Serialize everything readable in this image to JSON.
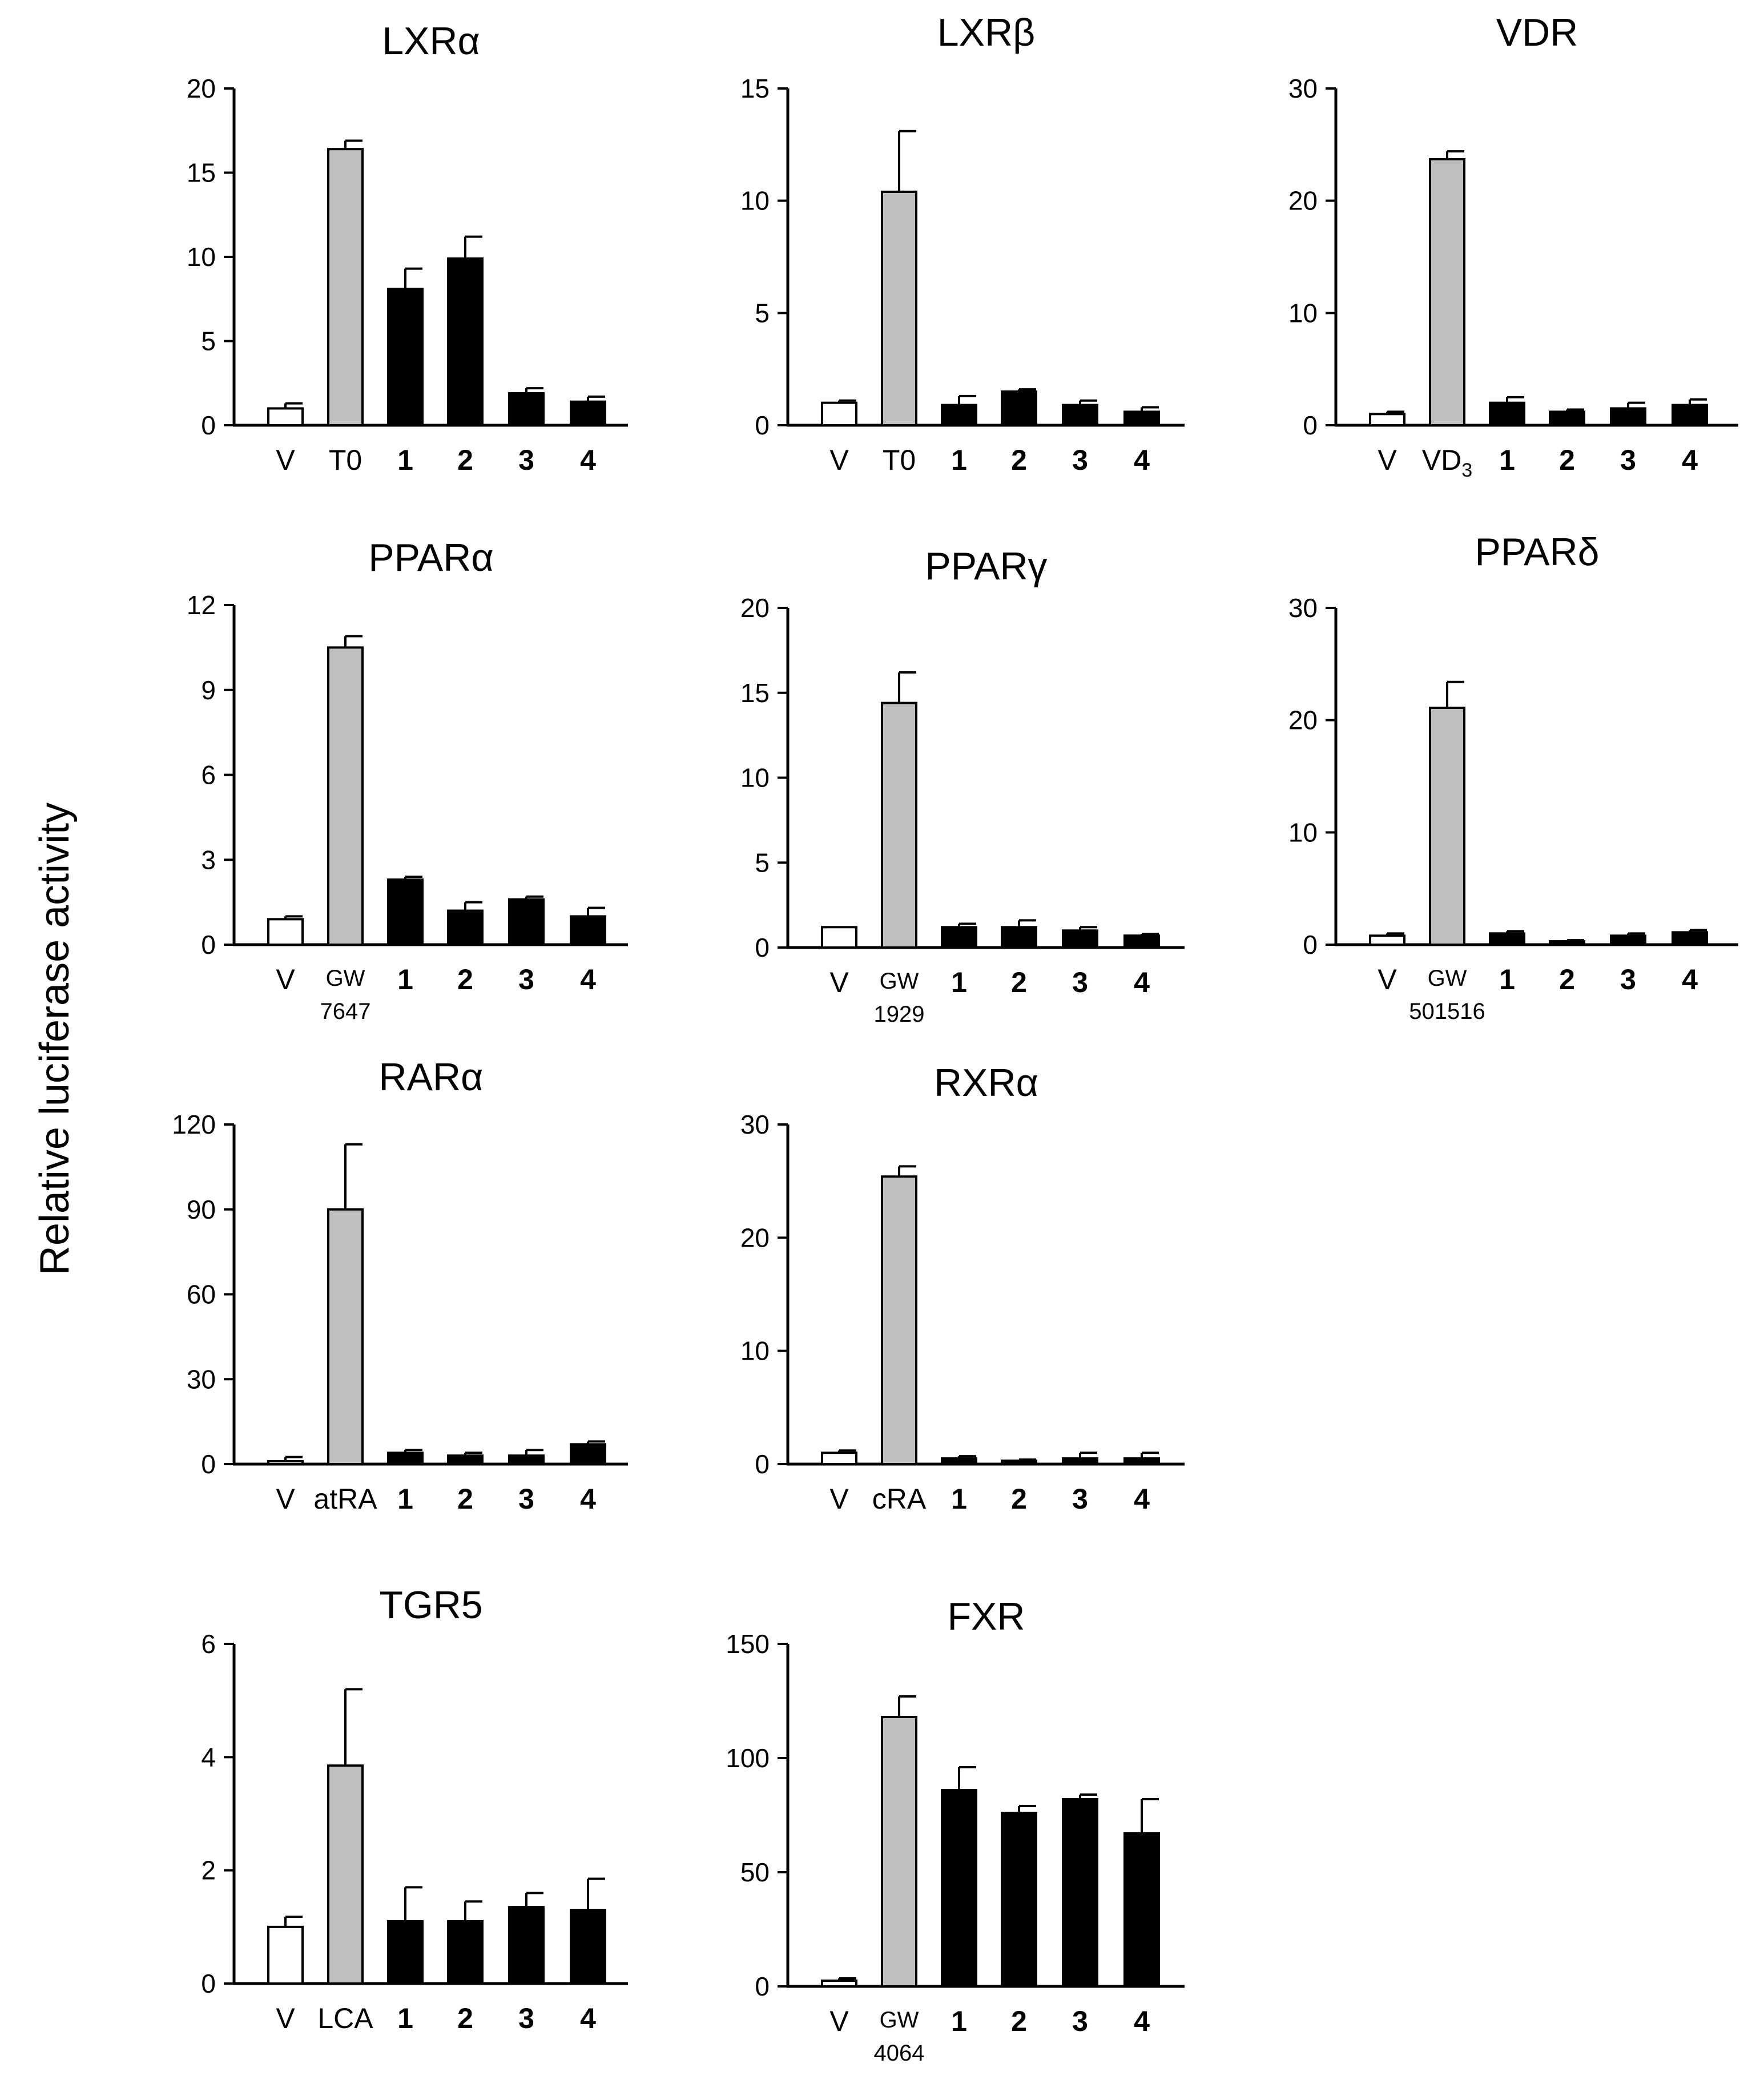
{
  "figure": {
    "ylabel": "Relative luciferase activity"
  },
  "colors": {
    "vehicle": "#ffffff",
    "control": "#c0c0c0",
    "compound": "#000000",
    "axis": "#000000"
  },
  "chart_data": [
    {
      "type": "bar",
      "title": "LXRα",
      "ylim": [
        0,
        20
      ],
      "yticks": [
        "0",
        "5",
        "10",
        "15",
        "20"
      ],
      "categories": [
        "V",
        "T0",
        "1",
        "2",
        "3",
        "4"
      ],
      "category_sublabels": [
        "",
        "",
        "",
        "",
        "",
        ""
      ],
      "values": [
        1.0,
        16.4,
        8.1,
        9.9,
        1.9,
        1.4
      ],
      "errors": [
        0.3,
        0.5,
        1.2,
        1.3,
        0.3,
        0.3
      ],
      "fills": [
        "vehicle",
        "control",
        "compound",
        "compound",
        "compound",
        "compound"
      ]
    },
    {
      "type": "bar",
      "title": "LXRβ",
      "ylim": [
        0,
        15
      ],
      "yticks": [
        "0",
        "5",
        "10",
        "15"
      ],
      "categories": [
        "V",
        "T0",
        "1",
        "2",
        "3",
        "4"
      ],
      "category_sublabels": [
        "",
        "",
        "",
        "",
        "",
        ""
      ],
      "values": [
        1.0,
        10.4,
        0.9,
        1.5,
        0.9,
        0.6
      ],
      "errors": [
        0.1,
        2.7,
        0.4,
        0.1,
        0.2,
        0.2
      ],
      "fills": [
        "vehicle",
        "control",
        "compound",
        "compound",
        "compound",
        "compound"
      ]
    },
    {
      "type": "bar",
      "title": "VDR",
      "ylim": [
        0,
        30
      ],
      "yticks": [
        "0",
        "10",
        "20",
        "30"
      ],
      "categories": [
        "V",
        "VD3",
        "1",
        "2",
        "3",
        "4"
      ],
      "category_sublabels": [
        "",
        "",
        "",
        "",
        "",
        ""
      ],
      "values": [
        1.0,
        23.7,
        2.0,
        1.2,
        1.5,
        1.8
      ],
      "errors": [
        0.2,
        0.7,
        0.5,
        0.2,
        0.5,
        0.5
      ],
      "fills": [
        "vehicle",
        "control",
        "compound",
        "compound",
        "compound",
        "compound"
      ]
    },
    {
      "type": "bar",
      "title": "PPARα",
      "ylim": [
        0,
        12
      ],
      "yticks": [
        "0",
        "3",
        "6",
        "9",
        "12"
      ],
      "categories": [
        "V",
        "GW",
        "1",
        "2",
        "3",
        "4"
      ],
      "category_sublabels": [
        "",
        "7647",
        "",
        "",
        "",
        ""
      ],
      "values": [
        0.9,
        10.5,
        2.3,
        1.2,
        1.6,
        1.0
      ],
      "errors": [
        0.1,
        0.4,
        0.1,
        0.3,
        0.1,
        0.3
      ],
      "fills": [
        "vehicle",
        "control",
        "compound",
        "compound",
        "compound",
        "compound"
      ]
    },
    {
      "type": "bar",
      "title": "PPARγ",
      "ylim": [
        0,
        20
      ],
      "yticks": [
        "0",
        "5",
        "10",
        "15",
        "20"
      ],
      "categories": [
        "V",
        "GW",
        "1",
        "2",
        "3",
        "4"
      ],
      "category_sublabels": [
        "",
        "1929",
        "",
        "",
        "",
        ""
      ],
      "values": [
        1.2,
        14.4,
        1.2,
        1.2,
        1.0,
        0.7
      ],
      "errors": [
        0.0,
        1.8,
        0.2,
        0.4,
        0.2,
        0.1
      ],
      "fills": [
        "vehicle",
        "control",
        "compound",
        "compound",
        "compound",
        "compound"
      ]
    },
    {
      "type": "bar",
      "title": "PPARδ",
      "ylim": [
        0,
        30
      ],
      "yticks": [
        "0",
        "10",
        "20",
        "30"
      ],
      "categories": [
        "V",
        "GW",
        "1",
        "2",
        "3",
        "4"
      ],
      "category_sublabels": [
        "",
        "501516",
        "",
        "",
        "",
        ""
      ],
      "values": [
        0.8,
        21.1,
        1.0,
        0.3,
        0.8,
        1.1
      ],
      "errors": [
        0.2,
        2.3,
        0.2,
        0.1,
        0.2,
        0.2
      ],
      "fills": [
        "vehicle",
        "control",
        "compound",
        "compound",
        "compound",
        "compound"
      ]
    },
    {
      "type": "bar",
      "title": "RARα",
      "ylim": [
        0,
        120
      ],
      "yticks": [
        "0",
        "30",
        "60",
        "90",
        "120"
      ],
      "categories": [
        "V",
        "atRA",
        "1",
        "2",
        "3",
        "4"
      ],
      "category_sublabels": [
        "",
        "",
        "",
        "",
        "",
        ""
      ],
      "values": [
        1.0,
        90.0,
        4.0,
        3.0,
        3.0,
        7.0
      ],
      "errors": [
        1.5,
        23.0,
        1.0,
        1.0,
        2.0,
        1.0
      ],
      "fills": [
        "vehicle",
        "control",
        "compound",
        "compound",
        "compound",
        "compound"
      ]
    },
    {
      "type": "bar",
      "title": "RXRα",
      "ylim": [
        0,
        30
      ],
      "yticks": [
        "0",
        "10",
        "20",
        "30"
      ],
      "categories": [
        "V",
        "cRA",
        "1",
        "2",
        "3",
        "4"
      ],
      "category_sublabels": [
        "",
        "",
        "",
        "",
        "",
        ""
      ],
      "values": [
        1.0,
        25.4,
        0.5,
        0.3,
        0.5,
        0.5
      ],
      "errors": [
        0.2,
        0.9,
        0.2,
        0.1,
        0.5,
        0.5
      ],
      "fills": [
        "vehicle",
        "control",
        "compound",
        "compound",
        "compound",
        "compound"
      ]
    },
    {
      "type": "bar",
      "title": "TGR5",
      "ylim": [
        0,
        6
      ],
      "yticks": [
        "0",
        "2",
        "4",
        "6"
      ],
      "categories": [
        "V",
        "LCA",
        "1",
        "2",
        "3",
        "4"
      ],
      "category_sublabels": [
        "",
        "",
        "",
        "",
        "",
        ""
      ],
      "values": [
        1.0,
        3.85,
        1.1,
        1.1,
        1.35,
        1.3
      ],
      "errors": [
        0.18,
        1.35,
        0.6,
        0.35,
        0.25,
        0.55
      ],
      "fills": [
        "vehicle",
        "control",
        "compound",
        "compound",
        "compound",
        "compound"
      ]
    },
    {
      "type": "bar",
      "title": "FXR",
      "ylim": [
        0,
        150
      ],
      "yticks": [
        "0",
        "50",
        "100",
        "150"
      ],
      "categories": [
        "V",
        "GW",
        "1",
        "2",
        "3",
        "4"
      ],
      "category_sublabels": [
        "",
        "4064",
        "",
        "",
        "",
        ""
      ],
      "values": [
        2.5,
        118.0,
        86.0,
        76.0,
        82.0,
        67.0
      ],
      "errors": [
        1.0,
        9.0,
        10.0,
        3.0,
        2.0,
        15.0
      ],
      "fills": [
        "vehicle",
        "control",
        "compound",
        "compound",
        "compound",
        "compound"
      ]
    }
  ]
}
